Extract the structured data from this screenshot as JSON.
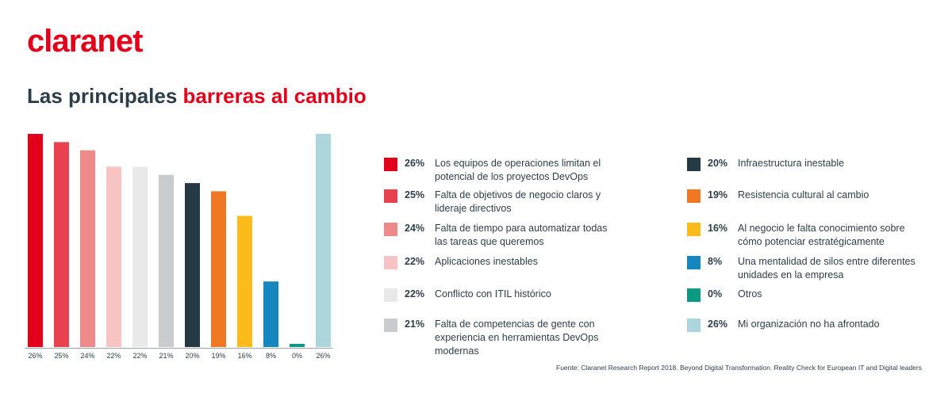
{
  "logo": "claranet",
  "title_part1": "Las principales",
  "title_part2": "barreras al cambio",
  "source": "Fuente: Claranet Research Report 2018. Beyond Digital Transformation. Reality Check for European IT and Digital leaders",
  "colors": {
    "brand": "#e2001a",
    "text": "#2c3e4a"
  },
  "chart_data": {
    "type": "bar",
    "values": [
      26,
      25,
      24,
      22,
      22,
      21,
      20,
      19,
      16,
      8,
      0,
      26
    ],
    "tick_labels": [
      "26%",
      "25%",
      "24%",
      "22%",
      "22%",
      "21%",
      "20%",
      "19%",
      "16%",
      "8%",
      "0%",
      "26%"
    ],
    "colors": [
      "#e2001a",
      "#e84150",
      "#ef8a8a",
      "#f7c3c3",
      "#e9e9ea",
      "#c8ccce",
      "#253a44",
      "#f07824",
      "#fbbb1b",
      "#1686bf",
      "#0d9a85",
      "#acd6dc"
    ],
    "ylim": [
      0,
      26
    ],
    "legend": [
      {
        "pct": "26%",
        "label": "Los equipos de operaciones limitan el potencial de los proyectos DevOps",
        "color": "#e2001a"
      },
      {
        "pct": "25%",
        "label": "Falta de objetivos de negocio claros y lideraje directivos",
        "color": "#e84150"
      },
      {
        "pct": "24%",
        "label": "Falta de tiempo para automatizar todas las tareas que queremos",
        "color": "#ef8a8a"
      },
      {
        "pct": "22%",
        "label": "Aplicaciones inestables",
        "color": "#f7c3c3"
      },
      {
        "pct": "22%",
        "label": "Conflicto con ITIL histórico",
        "color": "#e9e9ea"
      },
      {
        "pct": "21%",
        "label": "Falta de competencias de gente con experiencia en herramientas DevOps modernas",
        "color": "#c8ccce"
      },
      {
        "pct": "20%",
        "label": "Infraestructura inestable",
        "color": "#253a44"
      },
      {
        "pct": "19%",
        "label": "Resistencia cultural al cambio",
        "color": "#f07824"
      },
      {
        "pct": "16%",
        "label": "Al negocio le falta conocimiento sobre cómo potenciar estratégicamente",
        "color": "#fbbb1b"
      },
      {
        "pct": "8%",
        "label": "Una mentalidad de silos entre diferentes unidades en la empresa",
        "color": "#1686bf"
      },
      {
        "pct": "0%",
        "label": "Otros",
        "color": "#0d9a85"
      },
      {
        "pct": "26%",
        "label": "Mi organización no ha afrontado",
        "color": "#acd6dc"
      }
    ]
  }
}
